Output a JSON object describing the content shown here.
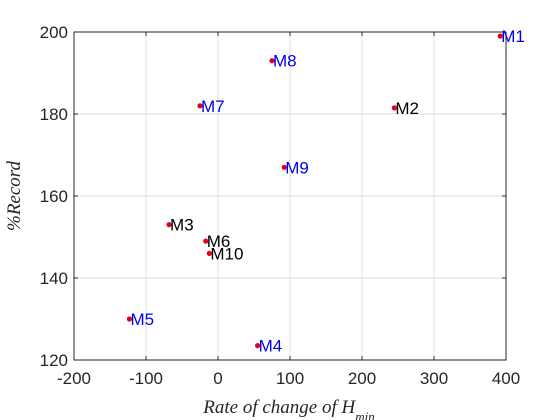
{
  "chart_data": {
    "type": "scatter",
    "xlabel_parts": [
      "Rate of change of ",
      "H",
      "min"
    ],
    "ylabel": "%Record",
    "xlim": [
      -200,
      400
    ],
    "ylim": [
      120,
      200
    ],
    "xticks": [
      -200,
      -100,
      0,
      100,
      200,
      300,
      400
    ],
    "yticks": [
      120,
      140,
      160,
      180,
      200
    ],
    "grid": true,
    "marker_color": "#e3001b",
    "points": [
      {
        "label": "M1",
        "x": 392,
        "y": 199,
        "label_color": "#0000ee"
      },
      {
        "label": "M2",
        "x": 245,
        "y": 181.5,
        "label_color": "#000000"
      },
      {
        "label": "M3",
        "x": -68,
        "y": 153,
        "label_color": "#000000"
      },
      {
        "label": "M4",
        "x": 55,
        "y": 123.5,
        "label_color": "#0000ee"
      },
      {
        "label": "M5",
        "x": -123,
        "y": 130,
        "label_color": "#0000ee"
      },
      {
        "label": "M6",
        "x": -17,
        "y": 149,
        "label_color": "#000000"
      },
      {
        "label": "M7",
        "x": -25,
        "y": 182,
        "label_color": "#0000ee"
      },
      {
        "label": "M8",
        "x": 75,
        "y": 193,
        "label_color": "#0000ee"
      },
      {
        "label": "M9",
        "x": 92,
        "y": 167,
        "label_color": "#0000ee"
      },
      {
        "label": "M10",
        "x": -12,
        "y": 146,
        "label_color": "#000000"
      }
    ]
  }
}
